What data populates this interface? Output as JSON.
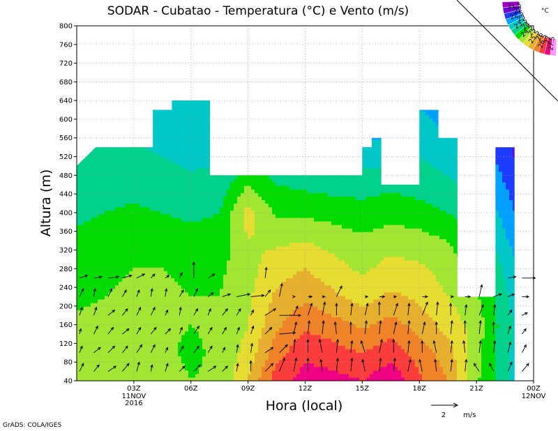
{
  "chart_data": {
    "type": "heatmap",
    "title": "SODAR - Cubatao - Temperatura (°C) e Vento (m/s)",
    "xlabel": "Hora (local)",
    "ylabel": "Altura (m)",
    "xlim": [
      0,
      24
    ],
    "ylim": [
      40,
      800
    ],
    "x_ticks": [
      {
        "value": 3,
        "label": "03Z",
        "sub": [
          "11NOV",
          "2016"
        ]
      },
      {
        "value": 6,
        "label": "06Z",
        "sub": []
      },
      {
        "value": 9,
        "label": "09Z",
        "sub": []
      },
      {
        "value": 12,
        "label": "12Z",
        "sub": []
      },
      {
        "value": 15,
        "label": "15Z",
        "sub": []
      },
      {
        "value": 18,
        "label": "18Z",
        "sub": []
      },
      {
        "value": 21,
        "label": "21Z",
        "sub": []
      },
      {
        "value": 24,
        "label": "00Z",
        "sub": [
          "12NOV"
        ]
      }
    ],
    "y_ticks": [
      40,
      80,
      120,
      160,
      200,
      240,
      280,
      320,
      360,
      400,
      440,
      480,
      520,
      560,
      600,
      640,
      680,
      720,
      760,
      800
    ],
    "grid": true,
    "colorbar": {
      "unit": "°C",
      "placement": "top-right",
      "levels": [
        "21.5",
        "22",
        "22.5",
        "23",
        "23.5",
        "24",
        "24.5",
        "25",
        "25.5",
        "26",
        "26.5",
        "27",
        "27.5"
      ],
      "colors": [
        "#a000c8",
        "#6e00dc",
        "#1e3cff",
        "#00a0ff",
        "#00c8c8",
        "#00d28c",
        "#00dc00",
        "#a0e632",
        "#e6dc32",
        "#e6af2d",
        "#f08228",
        "#fa3c3c",
        "#f00082",
        "#ff96ff"
      ]
    },
    "data_top": [
      [
        0,
        500
      ],
      [
        1,
        540
      ],
      [
        4,
        540
      ],
      [
        4,
        620
      ],
      [
        5,
        620
      ],
      [
        5,
        640
      ],
      [
        7,
        640
      ],
      [
        7,
        480
      ],
      [
        15,
        480
      ],
      [
        15,
        540
      ],
      [
        15.5,
        540
      ],
      [
        15.5,
        560
      ],
      [
        16,
        560
      ],
      [
        16,
        460
      ],
      [
        17,
        460
      ],
      [
        18,
        460
      ],
      [
        18,
        620
      ],
      [
        19,
        620
      ],
      [
        19,
        560
      ],
      [
        20,
        560
      ],
      [
        20,
        220
      ],
      [
        22,
        220
      ],
      [
        22,
        540
      ],
      [
        23,
        540
      ],
      [
        23,
        40
      ]
    ],
    "temperature_field": {
      "x": [
        0,
        1.5,
        3,
        4.5,
        6,
        7.5,
        9,
        10.5,
        12,
        13.5,
        15,
        16.5,
        18,
        19.5,
        21,
        22.5,
        24
      ],
      "z": [
        40,
        100,
        160,
        220,
        280,
        340,
        400,
        460,
        520,
        580,
        640
      ],
      "values": [
        [
          24.8,
          24.9,
          25.0,
          24.8,
          24.5,
          24.6,
          25.5,
          26.8,
          27.2,
          27.2,
          27.0,
          27.4,
          26.6,
          26.0,
          24.6,
          23.6,
          23.0
        ],
        [
          24.7,
          24.8,
          24.8,
          24.6,
          24.4,
          24.6,
          25.2,
          26.3,
          26.9,
          26.7,
          26.5,
          26.8,
          26.3,
          25.7,
          24.7,
          23.6,
          23.0
        ],
        [
          24.6,
          24.7,
          24.7,
          24.6,
          24.5,
          24.6,
          25.0,
          25.9,
          26.4,
          26.2,
          25.9,
          26.2,
          25.8,
          25.3,
          24.8,
          23.7,
          23.0
        ],
        [
          24.4,
          24.5,
          24.6,
          24.6,
          24.5,
          24.5,
          24.9,
          25.6,
          25.9,
          25.6,
          25.3,
          25.6,
          25.4,
          25.0,
          24.6,
          23.6,
          22.8
        ],
        [
          24.3,
          24.4,
          24.5,
          24.5,
          24.4,
          24.4,
          24.8,
          25.3,
          25.5,
          25.2,
          24.9,
          25.2,
          25.1,
          24.8,
          24.3,
          23.4,
          22.6
        ],
        [
          24.1,
          24.2,
          24.3,
          24.3,
          24.2,
          24.2,
          25.0,
          24.9,
          25.0,
          24.8,
          24.6,
          24.8,
          24.7,
          24.5,
          24.0,
          23.1,
          22.3
        ],
        [
          23.9,
          24.0,
          24.1,
          24.0,
          23.9,
          24.0,
          25.2,
          24.4,
          24.4,
          24.3,
          24.2,
          24.3,
          24.2,
          24.0,
          23.6,
          22.8,
          22.0
        ],
        [
          23.7,
          23.8,
          23.8,
          23.7,
          23.6,
          23.7,
          24.5,
          24.0,
          23.9,
          23.8,
          23.8,
          23.9,
          23.8,
          23.6,
          23.3,
          22.5,
          21.8
        ],
        [
          23.5,
          23.6,
          23.6,
          23.5,
          23.4,
          23.4,
          23.6,
          23.6,
          23.6,
          23.5,
          23.3,
          23.2,
          23.5,
          23.3,
          23.0,
          22.2,
          21.6
        ],
        [
          23.3,
          23.4,
          23.4,
          23.3,
          23.2,
          23.2,
          23.3,
          23.4,
          23.4,
          23.3,
          22.9,
          22.8,
          23.2,
          23.0,
          22.8,
          22.0,
          21.5
        ],
        [
          23.1,
          23.2,
          23.2,
          23.1,
          23.0,
          23.0,
          23.1,
          23.2,
          23.2,
          23.1,
          22.7,
          22.6,
          23.0,
          22.5,
          22.6,
          21.9,
          21.4
        ]
      ]
    },
    "wind_vectors": {
      "x": [
        0.0,
        0.75,
        1.5,
        2.25,
        3.0,
        3.75,
        4.5,
        5.25,
        6.0,
        6.75,
        7.5,
        8.25,
        9.0,
        9.75,
        10.5,
        11.25,
        12.0,
        12.75,
        13.5,
        14.25,
        15.0,
        15.75,
        16.5,
        17.25,
        18.0,
        18.75,
        19.5,
        20.25,
        21.0,
        21.75,
        22.5,
        23.25
      ],
      "z": [
        60,
        100,
        140,
        180,
        220,
        260
      ],
      "u": [
        [
          0.3,
          0.4,
          0.6,
          0.5,
          0.2,
          0.1,
          0.2,
          0.4,
          0.5,
          0.6,
          0.4,
          0.1,
          0.0,
          0.6,
          0.4,
          0.2,
          0.0,
          -0.1,
          0.1,
          0.1,
          -0.2,
          0.1,
          0.1,
          0.2,
          -0.2,
          -0.1,
          0.1,
          0.1,
          -0.4,
          -0.3,
          0.3,
          0.5
        ],
        [
          0.2,
          0.5,
          0.5,
          0.4,
          0.4,
          0.3,
          0.2,
          0.3,
          0.4,
          0.3,
          0.2,
          0.1,
          0.1,
          0.6,
          0.6,
          0.1,
          0.0,
          -0.2,
          0.1,
          0.1,
          -0.3,
          0.2,
          0.0,
          0.1,
          0.0,
          -0.2,
          0.1,
          -0.1,
          0.1,
          0.1,
          0.2,
          0.3
        ],
        [
          0.1,
          0.3,
          0.4,
          0.5,
          0.3,
          0.4,
          0.4,
          0.2,
          0.4,
          0.3,
          0.3,
          0.2,
          0.2,
          0.5,
          1.2,
          0.2,
          0.1,
          0.1,
          -0.1,
          0.0,
          0.1,
          0.1,
          0.2,
          0.1,
          0.2,
          0.0,
          0.1,
          0.0,
          0.1,
          0.0,
          0.2,
          0.3
        ],
        [
          0.2,
          0.2,
          0.5,
          0.4,
          0.3,
          0.3,
          0.2,
          0.1,
          0.3,
          0.2,
          0.4,
          0.3,
          0.2,
          0.8,
          1.6,
          0.3,
          0.3,
          0.2,
          0.0,
          0.1,
          0.2,
          0.0,
          0.3,
          0.1,
          0.4,
          0.1,
          0.0,
          0.1,
          0.3,
          0.1,
          0.3,
          0.4
        ],
        [
          0.3,
          0.1,
          0.3,
          0.3,
          0.2,
          0.1,
          0.1,
          0.3,
          0.3,
          0.4,
          0.6,
          1.0,
          1.0,
          0.4,
          0.2,
          0.1,
          0.3,
          0.2,
          0.4,
          0.0,
          0.2,
          0.4,
          0.2,
          0.0,
          0.4,
          0.0,
          0.2,
          0.4,
          0.2,
          0.6,
          0.5,
          0.5
        ],
        [
          0.6,
          0.6,
          0.8,
          0.7,
          0.6,
          0.3,
          0.3,
          0.2,
          0.0,
          0.5,
          0.0,
          0.0,
          0.0,
          0.1,
          0.0,
          0.0,
          0.0,
          0.0,
          0.0,
          0.0,
          0.0,
          0.0,
          0.0,
          0.0,
          0.0,
          0.0,
          0.0,
          0.0,
          0.0,
          0.0,
          0.6,
          1.0
        ]
      ],
      "v": [
        [
          0.6,
          0.5,
          0.4,
          0.6,
          0.7,
          0.5,
          0.6,
          0.4,
          0.5,
          0.4,
          0.4,
          0.6,
          0.8,
          0.6,
          1.0,
          1.0,
          1.0,
          0.9,
          1.0,
          1.0,
          0.9,
          1.0,
          1.0,
          0.9,
          0.9,
          0.9,
          0.9,
          0.9,
          0.6,
          0.6,
          0.7,
          0.6
        ],
        [
          0.5,
          0.4,
          0.5,
          0.5,
          0.6,
          0.6,
          0.4,
          0.5,
          0.5,
          0.5,
          0.4,
          0.6,
          0.7,
          0.4,
          0.6,
          1.0,
          1.0,
          1.0,
          1.0,
          0.9,
          0.9,
          1.0,
          1.0,
          0.9,
          0.9,
          0.9,
          0.9,
          0.9,
          0.9,
          0.9,
          0.8,
          0.6
        ],
        [
          0.4,
          0.6,
          0.5,
          0.4,
          0.5,
          0.5,
          0.4,
          0.5,
          0.6,
          0.5,
          0.5,
          0.5,
          0.6,
          0.5,
          0.1,
          0.9,
          1.0,
          1.0,
          0.9,
          0.9,
          1.0,
          1.0,
          0.9,
          1.0,
          0.9,
          0.9,
          1.0,
          1.0,
          1.0,
          0.9,
          0.6,
          0.4
        ],
        [
          0.6,
          0.6,
          0.4,
          0.5,
          0.6,
          0.6,
          0.4,
          0.6,
          0.5,
          0.5,
          0.5,
          0.5,
          0.4,
          0.5,
          0.0,
          0.7,
          0.9,
          1.0,
          0.9,
          0.9,
          0.9,
          1.0,
          0.9,
          0.9,
          1.0,
          1.0,
          0.9,
          0.8,
          0.8,
          0.8,
          0.4,
          0.2
        ],
        [
          0.6,
          0.6,
          0.6,
          0.5,
          0.5,
          0.6,
          0.6,
          0.5,
          0.6,
          0.3,
          0.2,
          0.2,
          0.1,
          0.5,
          1.0,
          0.0,
          0.0,
          0.0,
          0.8,
          0.0,
          0.0,
          0.0,
          0.0,
          0.0,
          0.0,
          0.0,
          0.0,
          0.0,
          0.9,
          0.2,
          0.2,
          0.0
        ],
        [
          0.2,
          0.1,
          0.1,
          0.2,
          0.3,
          0.3,
          0.2,
          0.4,
          1.2,
          0.3,
          0.0,
          0.0,
          0.0,
          0.8,
          0.0,
          0.0,
          0.0,
          0.0,
          0.0,
          0.0,
          0.0,
          0.0,
          0.0,
          0.0,
          0.0,
          0.0,
          0.0,
          0.0,
          0.0,
          0.0,
          0.1,
          0.0
        ]
      ]
    },
    "reference_vector": {
      "value": "2",
      "unit": "m/s"
    }
  },
  "footer": {
    "credit": "GrADS: COLA/IGES"
  }
}
